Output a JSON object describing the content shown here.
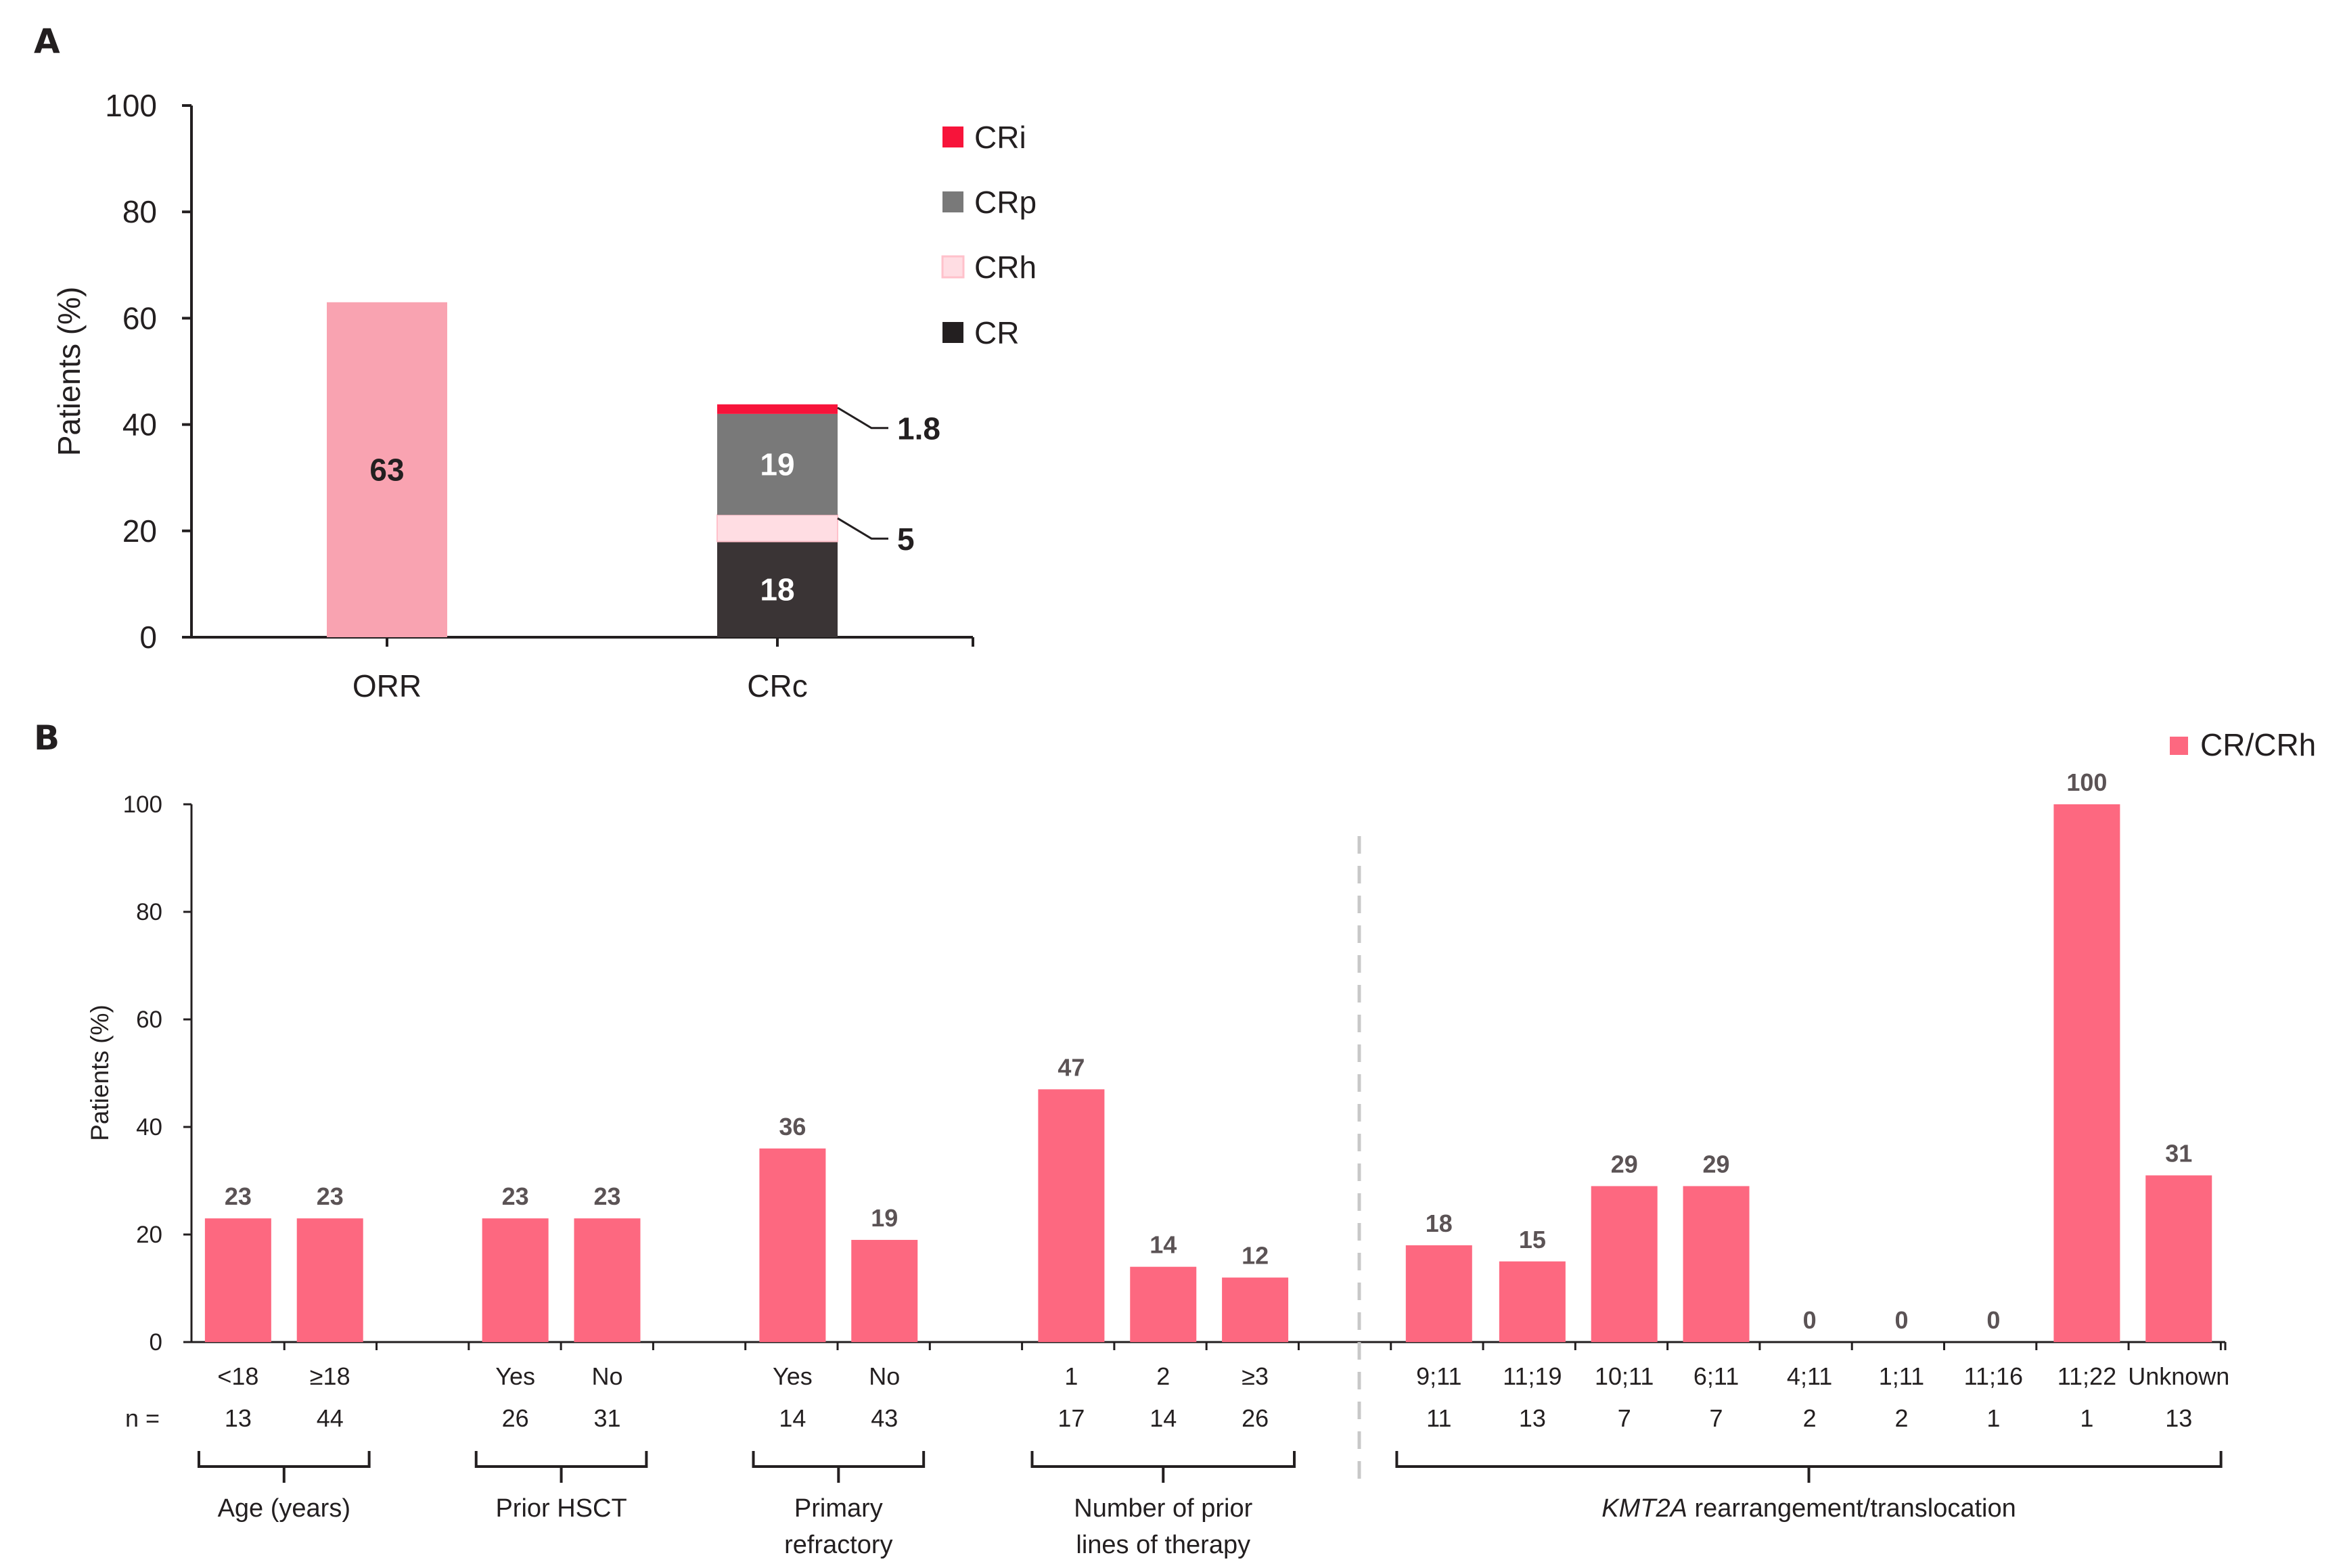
{
  "chart_data": [
    {
      "panel": "A",
      "type": "bar",
      "stacked": true,
      "ylabel": "Patients (%)",
      "ylim": [
        0,
        100
      ],
      "yticks": [
        0,
        20,
        40,
        60,
        80,
        100
      ],
      "categories": [
        "ORR",
        "CRc"
      ],
      "orr": {
        "value": 63,
        "label": "63",
        "color": "#f9a3b1"
      },
      "crc_segments": [
        {
          "name": "CR",
          "value": 18,
          "label": "18",
          "color": "#3a3435",
          "label_pos": "inside"
        },
        {
          "name": "CRh",
          "value": 5,
          "label": "5",
          "color": "#ffdde3",
          "label_pos": "callout"
        },
        {
          "name": "CRp",
          "value": 19,
          "label": "19",
          "color": "#797979",
          "label_pos": "inside"
        },
        {
          "name": "CRi",
          "value": 1.8,
          "label": "1.8",
          "color": "#f7143a",
          "label_pos": "callout"
        }
      ],
      "legend": [
        {
          "name": "CRi",
          "color": "#f7143a"
        },
        {
          "name": "CRp",
          "color": "#797979"
        },
        {
          "name": "CRh",
          "color": "#ffdde3"
        },
        {
          "name": "CR",
          "color": "#231f20"
        }
      ],
      "legend_position": "top-right"
    },
    {
      "panel": "B",
      "type": "bar",
      "ylabel": "Patients (%)",
      "ylim": [
        0,
        100
      ],
      "yticks": [
        0,
        20,
        40,
        60,
        80,
        100
      ],
      "series_name": "CR/CRh",
      "color": "#fd6880",
      "n_prefix": "n =",
      "legend_position": "top-right",
      "groups": [
        {
          "label": [
            "Age (years)"
          ],
          "italic_prefix": "",
          "bars": [
            {
              "category": "<18",
              "n": "13",
              "value": 23
            },
            {
              "category": "≥18",
              "n": "44",
              "value": 23
            }
          ]
        },
        {
          "label": [
            "Prior HSCT"
          ],
          "italic_prefix": "",
          "bars": [
            {
              "category": "Yes",
              "n": "26",
              "value": 23
            },
            {
              "category": "No",
              "n": "31",
              "value": 23
            }
          ]
        },
        {
          "label": [
            "Primary",
            "refractory"
          ],
          "italic_prefix": "",
          "bars": [
            {
              "category": "Yes",
              "n": "14",
              "value": 36
            },
            {
              "category": "No",
              "n": "43",
              "value": 19
            }
          ]
        },
        {
          "label": [
            "Number of prior",
            "lines of therapy"
          ],
          "italic_prefix": "",
          "bars": [
            {
              "category": "1",
              "n": "17",
              "value": 47
            },
            {
              "category": "2",
              "n": "14",
              "value": 14
            },
            {
              "category": "≥3",
              "n": "26",
              "value": 12
            }
          ]
        },
        {
          "label": [
            " rearrangement/translocation"
          ],
          "italic_prefix": "KMT2A",
          "bars": [
            {
              "category": "9;11",
              "n": "11",
              "value": 18
            },
            {
              "category": "11;19",
              "n": "13",
              "value": 15
            },
            {
              "category": "10;11",
              "n": "7",
              "value": 29
            },
            {
              "category": "6;11",
              "n": "7",
              "value": 29
            },
            {
              "category": "4;11",
              "n": "2",
              "value": 0
            },
            {
              "category": "1;11",
              "n": "2",
              "value": 0
            },
            {
              "category": "11;16",
              "n": "1",
              "value": 0
            },
            {
              "category": "11;22",
              "n": "1",
              "value": 100
            },
            {
              "category": "Unknown",
              "n": "13",
              "value": 31
            }
          ]
        }
      ]
    }
  ],
  "panel_labels": [
    "A",
    "B"
  ]
}
